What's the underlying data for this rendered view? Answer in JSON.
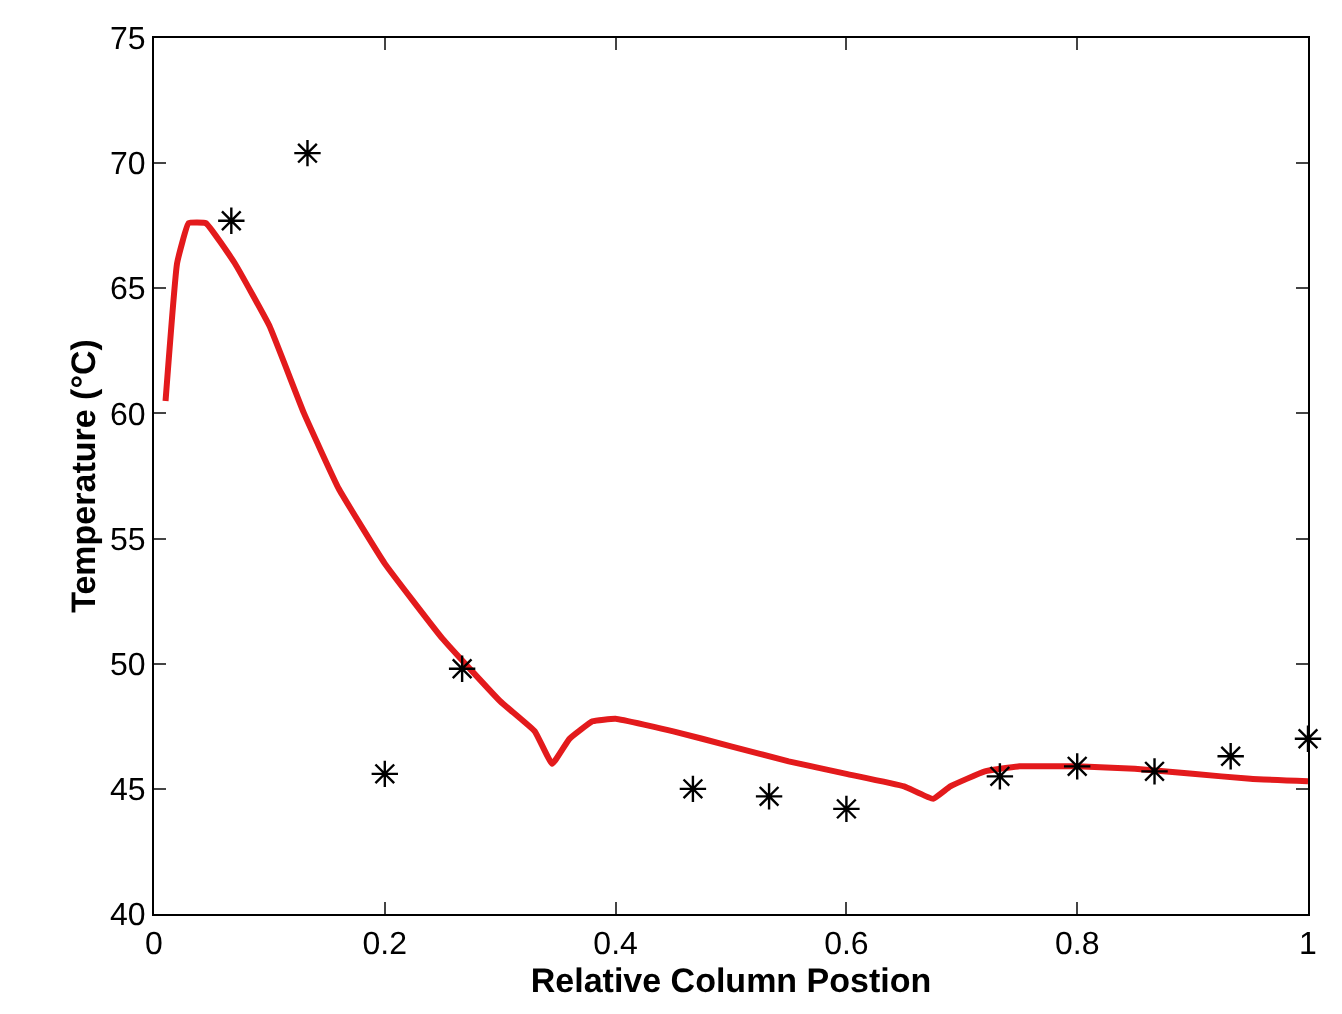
{
  "chart_data": {
    "type": "line",
    "xlabel": "Relative Column Postion",
    "ylabel": "Temperature (°C)",
    "xlim": [
      0,
      1
    ],
    "ylim": [
      40,
      75
    ],
    "xticks": [
      0,
      0.2,
      0.4,
      0.6,
      0.8,
      1
    ],
    "yticks": [
      40,
      45,
      50,
      55,
      60,
      65,
      70,
      75
    ],
    "grid": false,
    "series": [
      {
        "color": "#e31a1c",
        "marker": "none",
        "line_style": "solid",
        "x": [
          0.01,
          0.02,
          0.03,
          0.045,
          0.07,
          0.1,
          0.13,
          0.16,
          0.2,
          0.25,
          0.3,
          0.33,
          0.345,
          0.36,
          0.38,
          0.4,
          0.45,
          0.5,
          0.55,
          0.6,
          0.65,
          0.675,
          0.69,
          0.72,
          0.75,
          0.8,
          0.85,
          0.9,
          0.95,
          1.0
        ],
        "values": [
          60.5,
          66,
          67.6,
          67.6,
          66,
          63.5,
          60,
          57,
          54,
          51,
          48.5,
          47.3,
          46,
          47,
          47.7,
          47.8,
          47.3,
          46.7,
          46.1,
          45.6,
          45.1,
          44.6,
          45.1,
          45.7,
          45.9,
          45.9,
          45.8,
          45.6,
          45.4,
          45.3
        ]
      },
      {
        "type": "scatter",
        "color": "#000000",
        "marker": "cross",
        "x": [
          0.067,
          0.133,
          0.2,
          0.267,
          0.467,
          0.533,
          0.6,
          0.733,
          0.8,
          0.867,
          0.933,
          1.0
        ],
        "values": [
          67.7,
          70.4,
          45.6,
          49.8,
          45.0,
          44.7,
          44.2,
          45.5,
          45.9,
          45.7,
          46.3,
          47.0
        ]
      }
    ]
  }
}
